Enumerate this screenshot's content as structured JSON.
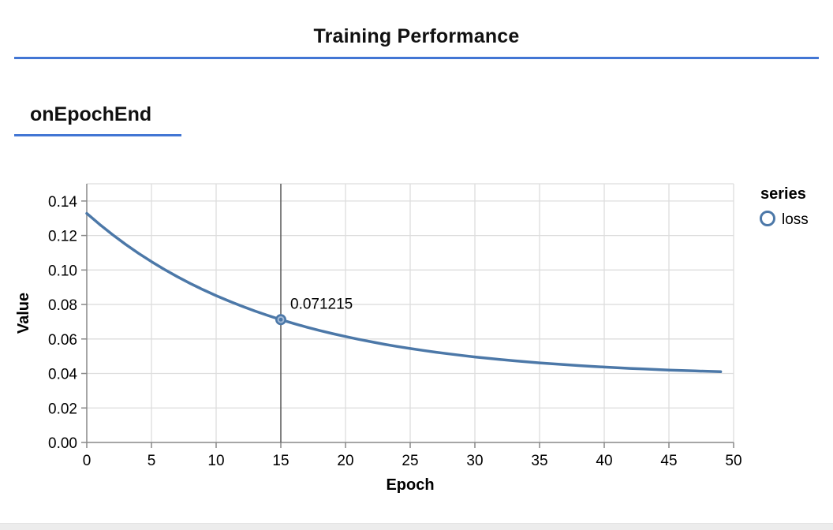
{
  "page": {
    "title": "Training Performance",
    "section_heading": "onEpochEnd",
    "accent_color": "#4276d4",
    "background_color": "#ffffff",
    "bottom_strip_color": "#ececec"
  },
  "chart_data": {
    "type": "line",
    "xlabel": "Epoch",
    "ylabel": "Value",
    "xlim": [
      0,
      50
    ],
    "ylim": [
      0,
      0.15
    ],
    "x_ticks": [
      0,
      5,
      10,
      15,
      20,
      25,
      30,
      35,
      40,
      45,
      50
    ],
    "y_ticks": [
      "0.00",
      "0.02",
      "0.04",
      "0.06",
      "0.08",
      "0.10",
      "0.12",
      "0.14"
    ],
    "grid": true,
    "colors": {
      "line": "#4c78a8",
      "grid": "#dddddd",
      "axis": "#888888",
      "label": "#000000",
      "hover_rule": "#595959",
      "marker_inner_ring": "#a3bad6"
    },
    "legend": {
      "title": "series",
      "position": "right",
      "entries": [
        {
          "label": "loss",
          "color": "#4c78a8",
          "symbol": "circle-outline"
        }
      ]
    },
    "series": [
      {
        "name": "loss",
        "color": "#4c78a8",
        "x": [
          0,
          1,
          2,
          3,
          4,
          5,
          6,
          7,
          8,
          9,
          10,
          11,
          12,
          13,
          14,
          15,
          16,
          17,
          18,
          19,
          20,
          21,
          22,
          23,
          24,
          25,
          26,
          27,
          28,
          29,
          30,
          31,
          32,
          33,
          34,
          35,
          36,
          37,
          38,
          39,
          40,
          41,
          42,
          43,
          44,
          45,
          46,
          47,
          48,
          49
        ],
        "values": [
          0.1328,
          0.126402,
          0.120435,
          0.11487,
          0.109681,
          0.104841,
          0.100328,
          0.096119,
          0.092194,
          0.088534,
          0.08512,
          0.081936,
          0.078967,
          0.076198,
          0.073616,
          0.071215,
          0.068963,
          0.066868,
          0.064915,
          0.063094,
          0.061395,
          0.059811,
          0.058334,
          0.056956,
          0.055671,
          0.054473,
          0.053356,
          0.052314,
          0.051342,
          0.050436,
          0.049591,
          0.048803,
          0.048068,
          0.047382,
          0.046743,
          0.046147,
          0.045591,
          0.045072,
          0.044588,
          0.044137,
          0.043717,
          0.043324,
          0.042959,
          0.042618,
          0.0423,
          0.042003,
          0.041726,
          0.041468,
          0.041228,
          0.041003
        ]
      }
    ],
    "highlight": {
      "series": "loss",
      "x": 15,
      "value": 0.071215,
      "tooltip_label": "0.071215"
    }
  }
}
